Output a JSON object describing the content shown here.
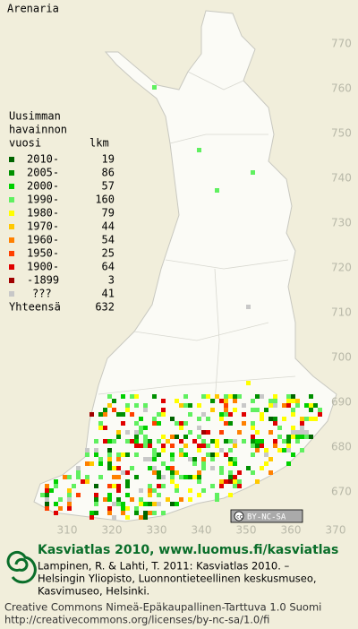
{
  "title": "Arenaria",
  "legend": {
    "heading": [
      "Uusimman",
      "havainnon",
      "vuosi"
    ],
    "count_heading": "lkm",
    "rows": [
      {
        "label": "2010-",
        "count": 19,
        "color": "#006400"
      },
      {
        "label": "2005-",
        "count": 86,
        "color": "#009000"
      },
      {
        "label": "2000-",
        "count": 57,
        "color": "#00d000"
      },
      {
        "label": "1990-",
        "count": 160,
        "color": "#60f060"
      },
      {
        "label": "1980-",
        "count": 79,
        "color": "#ffff00"
      },
      {
        "label": "1970-",
        "count": 44,
        "color": "#ffc800"
      },
      {
        "label": "1960-",
        "count": 54,
        "color": "#ff8000"
      },
      {
        "label": "1950-",
        "count": 25,
        "color": "#ff4000"
      },
      {
        "label": "1900-",
        "count": 64,
        "color": "#e00000"
      },
      {
        "label": "-1899",
        "count": 3,
        "color": "#a00000"
      },
      {
        "label": "???",
        "count": 41,
        "color": "#c8c8c8"
      }
    ],
    "total_label": "Yhteensä",
    "total": 632
  },
  "map_axes": {
    "yticks": [
      770,
      760,
      750,
      740,
      730,
      720,
      710,
      700,
      690,
      680,
      670
    ],
    "xticks": [
      310,
      320,
      330,
      340,
      350,
      360,
      370
    ]
  },
  "badge": "BY-NC-SA",
  "footer": {
    "site": "Kasviatlas 2010, www.luomus.fi/kasviatlas",
    "citation": [
      "Lampinen, R. & Lahti, T. 2011: Kasviatlas 2010. –",
      "Helsingin Yliopisto, Luonnontieteellinen keskusmuseo,",
      "Kasvimuseo, Helsinki."
    ],
    "license": [
      "Creative Commons Nimeä-Epäkaupallinen-Tarttuva 1.0 Suomi",
      "http://creativecommons.org/licenses/by-nc-sa/1.0/fi"
    ]
  }
}
